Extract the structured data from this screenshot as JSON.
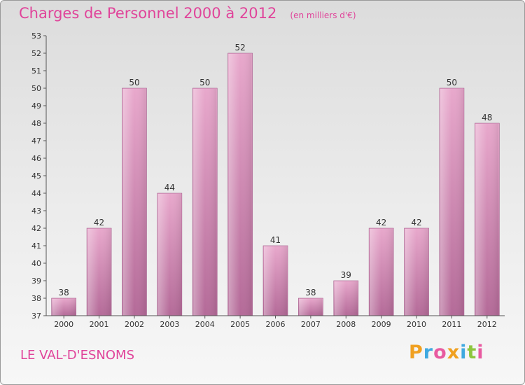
{
  "chart_data": {
    "type": "bar",
    "title": "Charges de Personnel 2000 à 2012",
    "subtitle": "(en milliers d'€)",
    "categories": [
      "2000",
      "2001",
      "2002",
      "2003",
      "2004",
      "2005",
      "2006",
      "2007",
      "2008",
      "2009",
      "2010",
      "2011",
      "2012"
    ],
    "values": [
      38,
      42,
      50,
      44,
      50,
      52,
      41,
      38,
      39,
      42,
      42,
      50,
      48
    ],
    "ylim": [
      37,
      53
    ],
    "yticks": [
      37,
      38,
      39,
      40,
      41,
      42,
      43,
      44,
      45,
      46,
      47,
      48,
      49,
      50,
      51,
      52,
      53
    ],
    "grid": false,
    "colors": {
      "bar": "#cc88b0",
      "bar_light": "#e8a8cc",
      "bar_dark": "#b46a98",
      "text": "#333333"
    }
  },
  "footer": {
    "municipality": "LE VAL-D'ESNOMS",
    "logo_text": "Proxiti"
  },
  "logo_colors": [
    "#f0a020",
    "#3fa9e0",
    "#e85aa0",
    "#f0a020",
    "#3fa9e0",
    "#8cc63e",
    "#e85aa0"
  ]
}
